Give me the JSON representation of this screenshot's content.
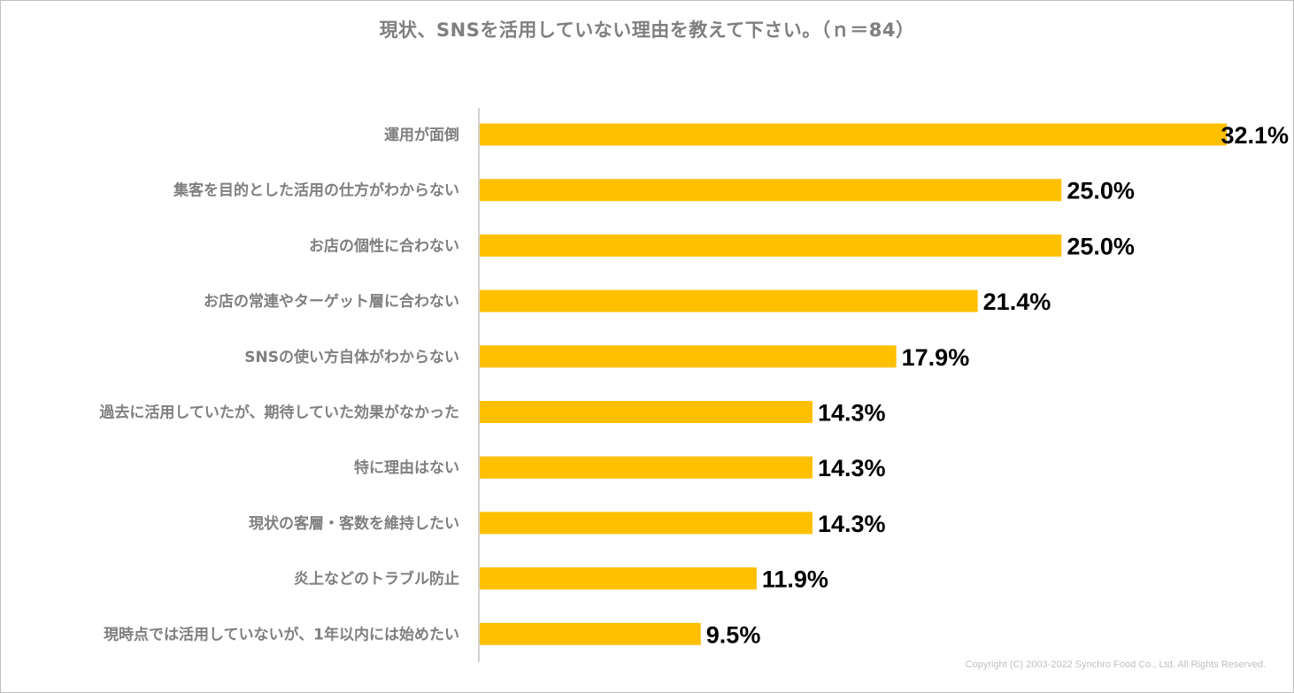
{
  "chart_data": {
    "type": "bar",
    "orientation": "horizontal",
    "title": "現状、SNSを活用していない理由を教えて下さい。（ｎ＝84）",
    "categories": [
      "運用が面倒",
      "集客を目的とした活用の仕方がわからない",
      "お店の個性に合わない",
      "お店の常連やターゲット層に合わない",
      "SNSの使い方自体がわからない",
      "過去に活用していたが、期待していた効果がなかった",
      "特に理由はない",
      "現状の客層・客数を維持したい",
      "炎上などのトラブル防止",
      "現時点では活用していないが、1年以内には始めたい"
    ],
    "values": [
      32.1,
      25.0,
      25.0,
      21.4,
      17.9,
      14.3,
      14.3,
      14.3,
      11.9,
      9.5
    ],
    "value_labels": [
      "32.1%",
      "25.0%",
      "25.0%",
      "21.4%",
      "17.9%",
      "14.3%",
      "14.3%",
      "14.3%",
      "11.9%",
      "9.5%"
    ],
    "unit": "%",
    "xlim": [
      0,
      32.1
    ],
    "xlabel": "",
    "ylabel": "",
    "grid": false,
    "legend": "none"
  },
  "colors": {
    "bar": "#ffc000",
    "category_text": "#7f7f7f",
    "value_text": "#000000",
    "title_text": "#7f7f7f",
    "axis_line": "#a6a6a6"
  },
  "footer": {
    "copyright": "Copyright (C) 2003-2022   Synchro Food Co., Ltd. All Rights Reserved."
  }
}
